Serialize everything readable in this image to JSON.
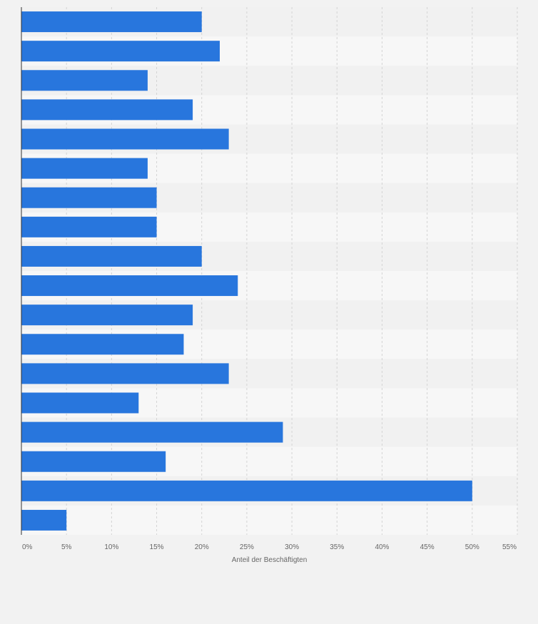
{
  "colors": {
    "bar": "#2876dd",
    "band_light": "#f7f7f7",
    "band_dark": "#f1f1f1",
    "grid": "#d4d4d4",
    "axis": "#333333",
    "tick_text": "#666666",
    "page_bg": "#f2f2f2"
  },
  "chart_data": {
    "type": "bar",
    "orientation": "horizontal",
    "title": "",
    "xlabel": "Anteil der Beschäftigten",
    "ylabel": "",
    "xlim": [
      0,
      55
    ],
    "x_ticks": [
      0,
      5,
      10,
      15,
      20,
      25,
      30,
      35,
      40,
      45,
      50,
      55
    ],
    "x_tick_labels": [
      "0%",
      "5%",
      "10%",
      "15%",
      "20%",
      "25%",
      "30%",
      "35%",
      "40%",
      "45%",
      "50%",
      "55%"
    ],
    "grid": "vertical dashed",
    "category_labels_visible": false,
    "values": [
      20,
      22,
      14,
      19,
      23,
      14,
      15,
      15,
      20,
      24,
      19,
      18,
      23,
      13,
      29,
      16,
      50,
      5
    ]
  }
}
